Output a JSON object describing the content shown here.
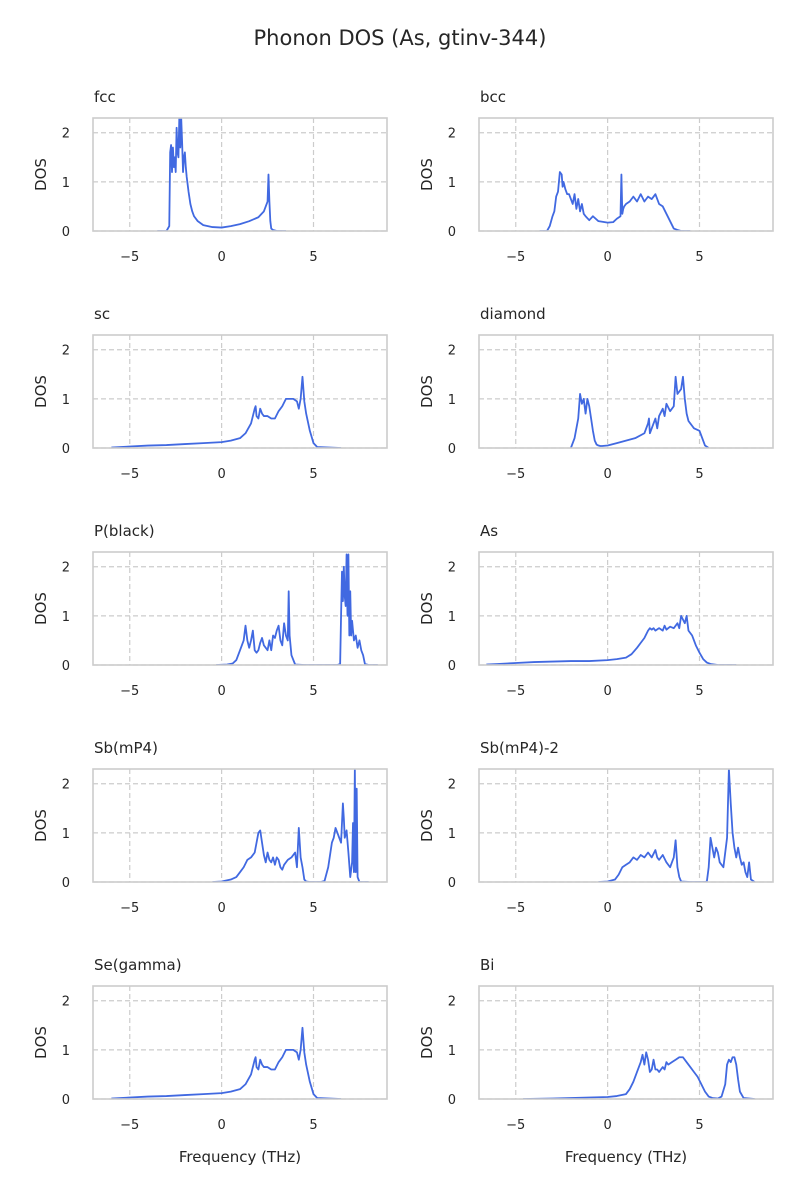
{
  "figure": {
    "title": "Phonon DOS (As, gtinv-344)"
  },
  "colors": {
    "line": "#4169E1",
    "grid": "#cccccc",
    "spine": "#cccccc",
    "text": "#262626"
  },
  "shared_axes": {
    "xlim": [
      -7,
      9
    ],
    "ylim": [
      0,
      2.3
    ],
    "xticks": [
      -5,
      0,
      5
    ],
    "yticks": [
      0,
      1,
      2
    ],
    "xtick_labels": [
      "−5",
      "0",
      "5"
    ],
    "ytick_labels": [
      "0",
      "1",
      "2"
    ],
    "xlabel": "Frequency (THz)",
    "ylabel": "DOS"
  },
  "chart_data": [
    {
      "type": "line",
      "title": "fcc",
      "xlabel": "",
      "ylabel": "DOS",
      "series": [
        {
          "name": "fcc",
          "x": [
            -3.5,
            -3.0,
            -2.85,
            -2.8,
            -2.75,
            -2.7,
            -2.65,
            -2.6,
            -2.55,
            -2.5,
            -2.45,
            -2.4,
            -2.35,
            -2.3,
            -2.25,
            -2.2,
            -2.15,
            -2.1,
            -2.05,
            -2.0,
            -1.95,
            -1.9,
            -1.8,
            -1.7,
            -1.6,
            -1.5,
            -1.3,
            -1.0,
            -0.5,
            0,
            0.5,
            1.0,
            1.5,
            2.0,
            2.3,
            2.5,
            2.55,
            2.6,
            2.65,
            2.7,
            2.8,
            3.0,
            3.5
          ],
          "y": [
            0,
            0,
            0.1,
            1.6,
            1.75,
            1.2,
            1.7,
            1.3,
            1.5,
            1.2,
            2.1,
            1.6,
            1.5,
            2.35,
            1.7,
            2.3,
            1.8,
            1.2,
            1.5,
            1.6,
            1.3,
            1.1,
            0.8,
            0.55,
            0.4,
            0.3,
            0.2,
            0.12,
            0.08,
            0.07,
            0.1,
            0.14,
            0.2,
            0.28,
            0.4,
            0.6,
            1.15,
            0.6,
            0.2,
            0.05,
            0.02,
            0,
            0
          ]
        }
      ]
    },
    {
      "type": "line",
      "title": "bcc",
      "xlabel": "",
      "ylabel": "DOS",
      "series": [
        {
          "name": "bcc",
          "x": [
            -3.7,
            -3.3,
            -3.15,
            -3.0,
            -2.9,
            -2.8,
            -2.7,
            -2.6,
            -2.5,
            -2.45,
            -2.4,
            -2.3,
            -2.2,
            -2.1,
            -2.0,
            -1.9,
            -1.8,
            -1.7,
            -1.6,
            -1.5,
            -1.4,
            -1.3,
            -1.2,
            -1.0,
            -0.8,
            -0.5,
            0,
            0.3,
            0.5,
            0.7,
            0.75,
            0.8,
            0.85,
            0.9,
            1.0,
            1.2,
            1.4,
            1.6,
            1.8,
            2.0,
            2.2,
            2.4,
            2.6,
            2.8,
            3.0,
            3.2,
            3.4,
            3.6,
            3.8,
            4.0,
            4.5
          ],
          "y": [
            0,
            0,
            0.1,
            0.3,
            0.4,
            0.7,
            0.8,
            1.2,
            1.15,
            0.9,
            1.0,
            0.85,
            0.75,
            0.75,
            0.65,
            0.55,
            0.75,
            0.45,
            0.65,
            0.4,
            0.55,
            0.35,
            0.3,
            0.22,
            0.3,
            0.2,
            0.17,
            0.18,
            0.25,
            0.3,
            1.15,
            0.35,
            0.45,
            0.5,
            0.55,
            0.6,
            0.7,
            0.6,
            0.75,
            0.6,
            0.7,
            0.65,
            0.75,
            0.55,
            0.5,
            0.35,
            0.2,
            0.05,
            0.02,
            0,
            0
          ]
        }
      ]
    },
    {
      "type": "line",
      "title": "sc",
      "xlabel": "",
      "ylabel": "DOS",
      "series": [
        {
          "name": "sc",
          "x": [
            -6.0,
            -5.0,
            -4.0,
            -3.0,
            -2.0,
            -1.0,
            0,
            0.5,
            1.0,
            1.3,
            1.6,
            1.8,
            1.85,
            1.9,
            2.0,
            2.1,
            2.2,
            2.3,
            2.5,
            2.7,
            2.9,
            3.1,
            3.3,
            3.5,
            3.7,
            3.9,
            4.1,
            4.2,
            4.3,
            4.4,
            4.5,
            4.6,
            4.8,
            5.0,
            5.2,
            6.5
          ],
          "y": [
            0.01,
            0.03,
            0.05,
            0.06,
            0.08,
            0.1,
            0.12,
            0.15,
            0.2,
            0.3,
            0.5,
            0.8,
            0.85,
            0.65,
            0.6,
            0.8,
            0.7,
            0.65,
            0.65,
            0.6,
            0.6,
            0.75,
            0.85,
            1.0,
            1.0,
            1.0,
            0.95,
            0.8,
            1.0,
            1.45,
            0.95,
            0.7,
            0.35,
            0.1,
            0.02,
            0
          ]
        }
      ]
    },
    {
      "type": "line",
      "title": "diamond",
      "xlabel": "",
      "ylabel": "DOS",
      "series": [
        {
          "name": "diamond",
          "x": [
            -2.0,
            -1.8,
            -1.6,
            -1.5,
            -1.4,
            -1.3,
            -1.2,
            -1.1,
            -1.0,
            -0.9,
            -0.8,
            -0.7,
            -0.6,
            -0.5,
            -0.4,
            -0.3,
            0,
            0.5,
            1.0,
            1.5,
            2.0,
            2.2,
            2.25,
            2.3,
            2.5,
            2.6,
            2.7,
            2.8,
            3.0,
            3.1,
            3.2,
            3.4,
            3.6,
            3.7,
            3.8,
            3.9,
            4.0,
            4.1,
            4.2,
            4.3,
            4.4,
            4.5,
            4.6,
            4.7,
            5.0,
            5.3,
            5.5
          ],
          "y": [
            0,
            0.2,
            0.6,
            1.1,
            0.9,
            1.0,
            0.7,
            1.0,
            0.85,
            0.6,
            0.35,
            0.15,
            0.07,
            0.05,
            0.04,
            0.04,
            0.05,
            0.1,
            0.15,
            0.2,
            0.3,
            0.5,
            0.6,
            0.3,
            0.5,
            0.6,
            0.4,
            0.65,
            0.8,
            0.65,
            0.9,
            0.75,
            0.85,
            1.45,
            1.1,
            1.15,
            1.2,
            1.45,
            1.0,
            0.7,
            0.55,
            0.5,
            0.45,
            0.4,
            0.35,
            0.05,
            0
          ]
        }
      ]
    },
    {
      "type": "line",
      "title": "P(black)",
      "xlabel": "",
      "ylabel": "DOS",
      "series": [
        {
          "name": "P(black)",
          "x": [
            -0.3,
            0.3,
            0.6,
            0.8,
            1.0,
            1.2,
            1.3,
            1.4,
            1.5,
            1.6,
            1.7,
            1.8,
            1.9,
            2.0,
            2.1,
            2.2,
            2.3,
            2.5,
            2.6,
            2.7,
            2.8,
            2.9,
            3.0,
            3.1,
            3.2,
            3.3,
            3.4,
            3.5,
            3.6,
            3.65,
            3.7,
            3.8,
            4.0,
            4.5,
            5.0,
            5.5,
            6.0,
            6.3,
            6.45,
            6.5,
            6.55,
            6.6,
            6.65,
            6.7,
            6.75,
            6.8,
            6.85,
            6.9,
            6.95,
            7.0,
            7.05,
            7.1,
            7.2,
            7.3,
            7.4,
            7.5,
            7.6,
            7.7,
            7.8,
            7.9,
            8.0,
            8.5
          ],
          "y": [
            0,
            0.01,
            0.03,
            0.1,
            0.3,
            0.5,
            0.8,
            0.5,
            0.35,
            0.5,
            0.7,
            0.3,
            0.25,
            0.3,
            0.45,
            0.55,
            0.4,
            0.3,
            0.5,
            0.3,
            0.6,
            0.55,
            0.7,
            0.8,
            0.5,
            0.4,
            0.85,
            0.6,
            0.5,
            1.5,
            0.6,
            0.2,
            0.01,
            0,
            0,
            0,
            0,
            0,
            0.02,
            1.0,
            1.9,
            1.3,
            2.0,
            1.4,
            1.2,
            2.25,
            1.0,
            2.25,
            0.6,
            1.5,
            0.6,
            0.9,
            0.5,
            0.6,
            0.35,
            0.5,
            0.3,
            0.2,
            0.02,
            0.01,
            0,
            0
          ]
        }
      ]
    },
    {
      "type": "line",
      "title": "As",
      "xlabel": "",
      "ylabel": "DOS",
      "series": [
        {
          "name": "As",
          "x": [
            -6.6,
            -6.0,
            -5.0,
            -4.0,
            -3.0,
            -2.0,
            -1.0,
            0,
            0.5,
            1.0,
            1.3,
            1.6,
            1.8,
            2.0,
            2.2,
            2.3,
            2.4,
            2.5,
            2.6,
            2.8,
            3.0,
            3.1,
            3.2,
            3.4,
            3.6,
            3.8,
            3.9,
            4.0,
            4.2,
            4.3,
            4.4,
            4.6,
            4.8,
            5.0,
            5.2,
            5.4,
            5.6,
            6.0,
            7.0
          ],
          "y": [
            0.01,
            0.02,
            0.04,
            0.06,
            0.07,
            0.08,
            0.08,
            0.1,
            0.12,
            0.15,
            0.22,
            0.35,
            0.45,
            0.55,
            0.7,
            0.75,
            0.72,
            0.75,
            0.7,
            0.75,
            0.7,
            0.8,
            0.72,
            0.78,
            0.75,
            0.85,
            0.75,
            1.0,
            0.85,
            1.0,
            0.7,
            0.6,
            0.4,
            0.25,
            0.12,
            0.05,
            0.02,
            0,
            0
          ]
        }
      ]
    },
    {
      "type": "line",
      "title": "Sb(mP4)",
      "xlabel": "",
      "ylabel": "DOS",
      "series": [
        {
          "name": "Sb(mP4)",
          "x": [
            -0.5,
            0,
            0.5,
            0.8,
            1.0,
            1.2,
            1.4,
            1.6,
            1.8,
            2.0,
            2.1,
            2.2,
            2.3,
            2.4,
            2.5,
            2.6,
            2.7,
            2.8,
            2.9,
            3.0,
            3.1,
            3.2,
            3.3,
            3.4,
            3.6,
            3.8,
            4.0,
            4.1,
            4.2,
            4.3,
            4.4,
            4.5,
            4.6,
            4.8,
            5.0,
            5.2,
            5.4,
            5.6,
            5.8,
            6.0,
            6.1,
            6.2,
            6.3,
            6.4,
            6.5,
            6.6,
            6.65,
            6.7,
            6.8,
            6.9,
            7.0,
            7.1,
            7.15,
            7.2,
            7.25,
            7.3,
            7.35,
            7.4,
            7.5,
            8.0
          ],
          "y": [
            0,
            0.01,
            0.05,
            0.1,
            0.2,
            0.3,
            0.45,
            0.5,
            0.6,
            1.0,
            1.05,
            0.8,
            0.55,
            0.4,
            0.6,
            0.45,
            0.4,
            0.5,
            0.35,
            0.5,
            0.45,
            0.3,
            0.25,
            0.35,
            0.45,
            0.5,
            0.6,
            0.3,
            1.1,
            0.5,
            0.3,
            0.05,
            0.01,
            0,
            0,
            0,
            0,
            0.02,
            0.3,
            0.8,
            0.9,
            1.1,
            1.0,
            0.9,
            0.8,
            1.6,
            1.3,
            0.9,
            1.05,
            0.6,
            0.1,
            0.4,
            1.2,
            0.2,
            2.3,
            0.2,
            1.9,
            0.1,
            0,
            0
          ]
        }
      ]
    },
    {
      "type": "line",
      "title": "Sb(mP4)-2",
      "xlabel": "",
      "ylabel": "DOS",
      "series": [
        {
          "name": "Sb(mP4)-2",
          "x": [
            -0.5,
            0,
            0.4,
            0.6,
            0.8,
            1.0,
            1.2,
            1.4,
            1.6,
            1.8,
            2.0,
            2.2,
            2.4,
            2.6,
            2.7,
            2.8,
            3.0,
            3.2,
            3.4,
            3.5,
            3.6,
            3.7,
            3.8,
            3.9,
            4.0,
            4.5,
            5.0,
            5.3,
            5.4,
            5.5,
            5.6,
            5.7,
            5.8,
            5.9,
            6.0,
            6.1,
            6.3,
            6.4,
            6.5,
            6.55,
            6.6,
            6.7,
            6.8,
            6.9,
            7.0,
            7.1,
            7.2,
            7.3,
            7.4,
            7.5,
            7.6,
            7.7,
            7.8,
            8.0
          ],
          "y": [
            0,
            0.01,
            0.05,
            0.15,
            0.3,
            0.35,
            0.4,
            0.5,
            0.45,
            0.55,
            0.5,
            0.6,
            0.5,
            0.65,
            0.5,
            0.45,
            0.55,
            0.4,
            0.3,
            0.4,
            0.5,
            0.85,
            0.3,
            0.1,
            0.01,
            0,
            0,
            0,
            0.01,
            0.3,
            0.9,
            0.7,
            0.5,
            0.7,
            0.6,
            0.4,
            0.3,
            0.6,
            0.9,
            1.6,
            2.3,
            1.6,
            1.0,
            0.7,
            0.5,
            0.7,
            0.5,
            0.35,
            0.4,
            0.2,
            0.1,
            0.4,
            0.05,
            0
          ]
        }
      ]
    },
    {
      "type": "line",
      "title": "Se(gamma)",
      "xlabel": "Frequency (THz)",
      "ylabel": "DOS",
      "series": [
        {
          "name": "Se(gamma)",
          "x": [
            -6.0,
            -5.0,
            -4.0,
            -3.0,
            -2.0,
            -1.0,
            0,
            0.5,
            1.0,
            1.3,
            1.6,
            1.8,
            1.85,
            1.9,
            2.0,
            2.1,
            2.2,
            2.3,
            2.5,
            2.7,
            2.9,
            3.1,
            3.3,
            3.5,
            3.7,
            3.9,
            4.1,
            4.2,
            4.3,
            4.4,
            4.5,
            4.6,
            4.8,
            5.0,
            5.2,
            6.5
          ],
          "y": [
            0.01,
            0.03,
            0.05,
            0.06,
            0.08,
            0.1,
            0.12,
            0.15,
            0.2,
            0.3,
            0.5,
            0.8,
            0.85,
            0.65,
            0.6,
            0.8,
            0.7,
            0.65,
            0.65,
            0.6,
            0.6,
            0.75,
            0.85,
            1.0,
            1.0,
            1.0,
            0.95,
            0.8,
            1.0,
            1.45,
            0.95,
            0.7,
            0.35,
            0.1,
            0.02,
            0
          ]
        }
      ]
    },
    {
      "type": "line",
      "title": "Bi",
      "xlabel": "Frequency (THz)",
      "ylabel": "DOS",
      "series": [
        {
          "name": "Bi",
          "x": [
            -4.6,
            -3.0,
            -2.0,
            -1.0,
            0,
            0.5,
            1.0,
            1.2,
            1.4,
            1.6,
            1.8,
            1.9,
            2.0,
            2.1,
            2.2,
            2.3,
            2.4,
            2.5,
            2.6,
            2.7,
            2.8,
            2.9,
            3.0,
            3.1,
            3.2,
            3.3,
            3.5,
            3.7,
            3.9,
            4.0,
            4.1,
            4.3,
            4.5,
            4.7,
            4.9,
            5.1,
            5.3,
            5.5,
            5.7,
            6.0,
            6.2,
            6.4,
            6.5,
            6.6,
            6.7,
            6.8,
            6.9,
            7.0,
            7.1,
            7.2,
            7.4,
            8.0
          ],
          "y": [
            0,
            0.01,
            0.02,
            0.03,
            0.04,
            0.06,
            0.1,
            0.2,
            0.35,
            0.55,
            0.75,
            0.9,
            0.7,
            0.95,
            0.8,
            0.55,
            0.6,
            0.8,
            0.6,
            0.6,
            0.55,
            0.6,
            0.65,
            0.6,
            0.75,
            0.7,
            0.75,
            0.8,
            0.85,
            0.85,
            0.85,
            0.75,
            0.65,
            0.55,
            0.45,
            0.3,
            0.15,
            0.05,
            0.02,
            0.01,
            0.05,
            0.3,
            0.7,
            0.8,
            0.75,
            0.85,
            0.85,
            0.7,
            0.4,
            0.15,
            0.02,
            0
          ]
        }
      ]
    }
  ]
}
